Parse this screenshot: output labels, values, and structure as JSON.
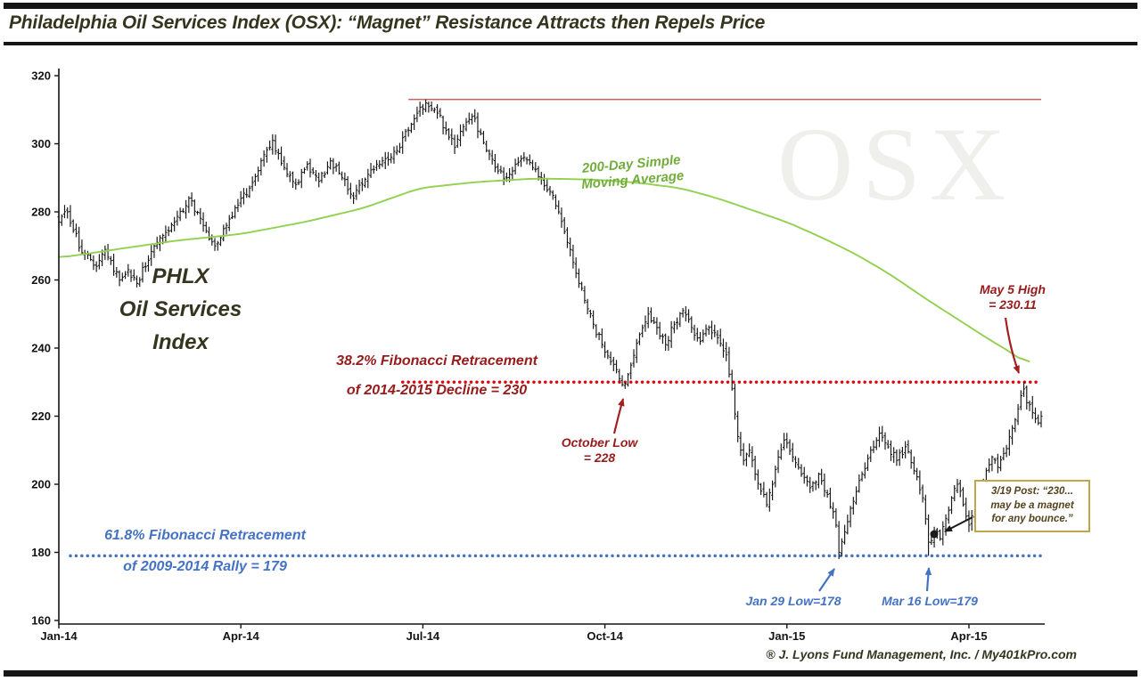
{
  "title": "Philadelphia Oil Services Index (OSX): “Magnet” Resistance Attracts then Repels Price",
  "attribution": "® J. Lyons Fund Management, Inc. / My401kPro.com",
  "watermark": "OSX",
  "colors": {
    "ink": "#141414",
    "title_olive": "#35351f",
    "price": "#161616",
    "ma": "#92d050",
    "ma_label": "#71ad3c",
    "resistance": "#cc4444",
    "fib_red_line": "#e60000",
    "fib_red_text": "#971b1b",
    "fib_blue": "#4472c4",
    "arrow_red": "#a32020",
    "box_border": "#bfa64a",
    "box_text": "#54431d",
    "watermark": "#efefec"
  },
  "labels": {
    "phlx": [
      "PHLX",
      "Oil Services",
      "Index"
    ],
    "ma": [
      "200-Day Simple",
      "Moving Average"
    ],
    "fib382": [
      "38.2% Fibonacci  Retracement",
      "of 2014-2015 Decline = 230"
    ],
    "fib618": [
      "61.8% Fibonacci  Retracement",
      "of 2009-2014 Rally = 179"
    ],
    "may5": [
      "May 5 High",
      "= 230.11"
    ],
    "october": [
      "October Low",
      "= 228"
    ],
    "jan29": "Jan 29 Low=178",
    "mar16": "Mar 16 Low=179",
    "post": [
      "3/19 Post: “230...",
      "may be a magnet",
      "for any bounce.”"
    ]
  },
  "chart_data": {
    "type": "ohlc",
    "title": "Philadelphia Oil Services Index (OSX)",
    "ylim": [
      160,
      320
    ],
    "y_ticks": [
      160,
      180,
      200,
      220,
      240,
      260,
      280,
      300,
      320
    ],
    "x_ticks": [
      {
        "label": "Jan-14",
        "day": 0
      },
      {
        "label": "Apr-14",
        "day": 63
      },
      {
        "label": "Jul-14",
        "day": 126
      },
      {
        "label": "Oct-14",
        "day": 189
      },
      {
        "label": "Jan-15",
        "day": 252
      },
      {
        "label": "Apr-15",
        "day": 315
      }
    ],
    "days_total": 341,
    "grid": false,
    "legend": false,
    "price_anchors": [
      [
        0,
        277
      ],
      [
        3,
        280
      ],
      [
        8,
        268
      ],
      [
        13,
        264
      ],
      [
        16,
        269
      ],
      [
        21,
        260
      ],
      [
        24,
        263
      ],
      [
        27,
        259
      ],
      [
        33,
        270
      ],
      [
        40,
        277
      ],
      [
        45,
        284
      ],
      [
        50,
        276
      ],
      [
        54,
        270
      ],
      [
        58,
        276
      ],
      [
        62,
        282
      ],
      [
        66,
        287
      ],
      [
        70,
        295
      ],
      [
        74,
        301
      ],
      [
        78,
        293
      ],
      [
        82,
        288
      ],
      [
        86,
        294
      ],
      [
        90,
        289
      ],
      [
        94,
        295
      ],
      [
        98,
        290
      ],
      [
        102,
        284
      ],
      [
        107,
        291
      ],
      [
        112,
        295
      ],
      [
        117,
        298
      ],
      [
        121,
        304
      ],
      [
        124,
        309
      ],
      [
        127,
        312
      ],
      [
        131,
        309
      ],
      [
        134,
        304
      ],
      [
        137,
        299
      ],
      [
        140,
        305
      ],
      [
        143,
        308
      ],
      [
        146,
        303
      ],
      [
        149,
        297
      ],
      [
        152,
        292
      ],
      [
        155,
        290
      ],
      [
        158,
        294
      ],
      [
        161,
        296
      ],
      [
        164,
        293
      ],
      [
        167,
        290
      ],
      [
        170,
        286
      ],
      [
        173,
        280
      ],
      [
        176,
        271
      ],
      [
        179,
        262
      ],
      [
        182,
        254
      ],
      [
        185,
        247
      ],
      [
        188,
        241
      ],
      [
        191,
        236
      ],
      [
        194,
        231
      ],
      [
        196,
        228
      ],
      [
        198,
        235
      ],
      [
        201,
        244
      ],
      [
        204,
        250
      ],
      [
        207,
        246
      ],
      [
        210,
        241
      ],
      [
        213,
        247
      ],
      [
        216,
        251
      ],
      [
        219,
        246
      ],
      [
        222,
        242
      ],
      [
        225,
        246
      ],
      [
        228,
        243
      ],
      [
        231,
        238
      ],
      [
        233,
        228
      ],
      [
        235,
        214
      ],
      [
        237,
        207
      ],
      [
        239,
        210
      ],
      [
        241,
        203
      ],
      [
        243,
        198
      ],
      [
        245,
        194
      ],
      [
        247,
        200
      ],
      [
        249,
        208
      ],
      [
        251,
        213
      ],
      [
        254,
        208
      ],
      [
        257,
        203
      ],
      [
        260,
        199
      ],
      [
        263,
        203
      ],
      [
        266,
        197
      ],
      [
        269,
        188
      ],
      [
        270,
        180
      ],
      [
        272,
        186
      ],
      [
        275,
        195
      ],
      [
        278,
        203
      ],
      [
        281,
        210
      ],
      [
        284,
        215
      ],
      [
        287,
        211
      ],
      [
        290,
        207
      ],
      [
        293,
        211
      ],
      [
        296,
        204
      ],
      [
        299,
        196
      ],
      [
        301,
        183
      ],
      [
        303,
        186
      ],
      [
        305,
        184
      ],
      [
        307,
        190
      ],
      [
        309,
        196
      ],
      [
        311,
        200
      ],
      [
        313,
        194
      ],
      [
        315,
        188
      ],
      [
        317,
        192
      ],
      [
        319,
        198
      ],
      [
        321,
        204
      ],
      [
        323,
        208
      ],
      [
        325,
        205
      ],
      [
        327,
        209
      ],
      [
        329,
        214
      ],
      [
        331,
        219
      ],
      [
        333,
        226
      ],
      [
        334,
        228
      ],
      [
        335,
        224
      ],
      [
        337,
        221
      ],
      [
        339,
        218
      ],
      [
        340,
        220
      ]
    ],
    "ma200_anchors": [
      [
        0,
        266.5
      ],
      [
        20,
        269
      ],
      [
        40,
        271.5
      ],
      [
        63,
        273.5
      ],
      [
        85,
        277
      ],
      [
        105,
        281
      ],
      [
        125,
        287
      ],
      [
        145,
        288.8
      ],
      [
        165,
        289.8
      ],
      [
        185,
        289.5
      ],
      [
        200,
        288.6
      ],
      [
        215,
        287
      ],
      [
        228,
        284
      ],
      [
        240,
        280.5
      ],
      [
        252,
        277
      ],
      [
        264,
        272.5
      ],
      [
        276,
        267.5
      ],
      [
        288,
        261.5
      ],
      [
        300,
        254.5
      ],
      [
        312,
        248
      ],
      [
        322,
        242.5
      ],
      [
        330,
        238.5
      ],
      [
        336,
        234.8
      ]
    ],
    "levels": [
      {
        "name": "resistance-2014-high",
        "value": 313,
        "from_day": 121,
        "style": "solid",
        "color_key": "resistance"
      },
      {
        "name": "fib-382-retracement",
        "value": 230,
        "from_day": 119,
        "style": "dotted",
        "color_key": "fib_red_line"
      },
      {
        "name": "fib-618-retracement",
        "value": 179,
        "from_day": 4,
        "style": "dotted",
        "color_key": "fib_blue"
      }
    ],
    "key_points": [
      {
        "name": "2014-peak",
        "day": 127,
        "value": 313,
        "type": "high"
      },
      {
        "name": "october-low",
        "day": 196,
        "value": 228,
        "type": "low"
      },
      {
        "name": "jan29-low",
        "day": 270,
        "value": 178,
        "type": "low"
      },
      {
        "name": "mar16-low",
        "day": 301,
        "value": 179,
        "type": "low"
      },
      {
        "name": "may5-high",
        "day": 334,
        "value": 230.11,
        "type": "high"
      },
      {
        "name": "post-dot",
        "day": 303,
        "value": 185.5,
        "type": "marker"
      }
    ]
  }
}
